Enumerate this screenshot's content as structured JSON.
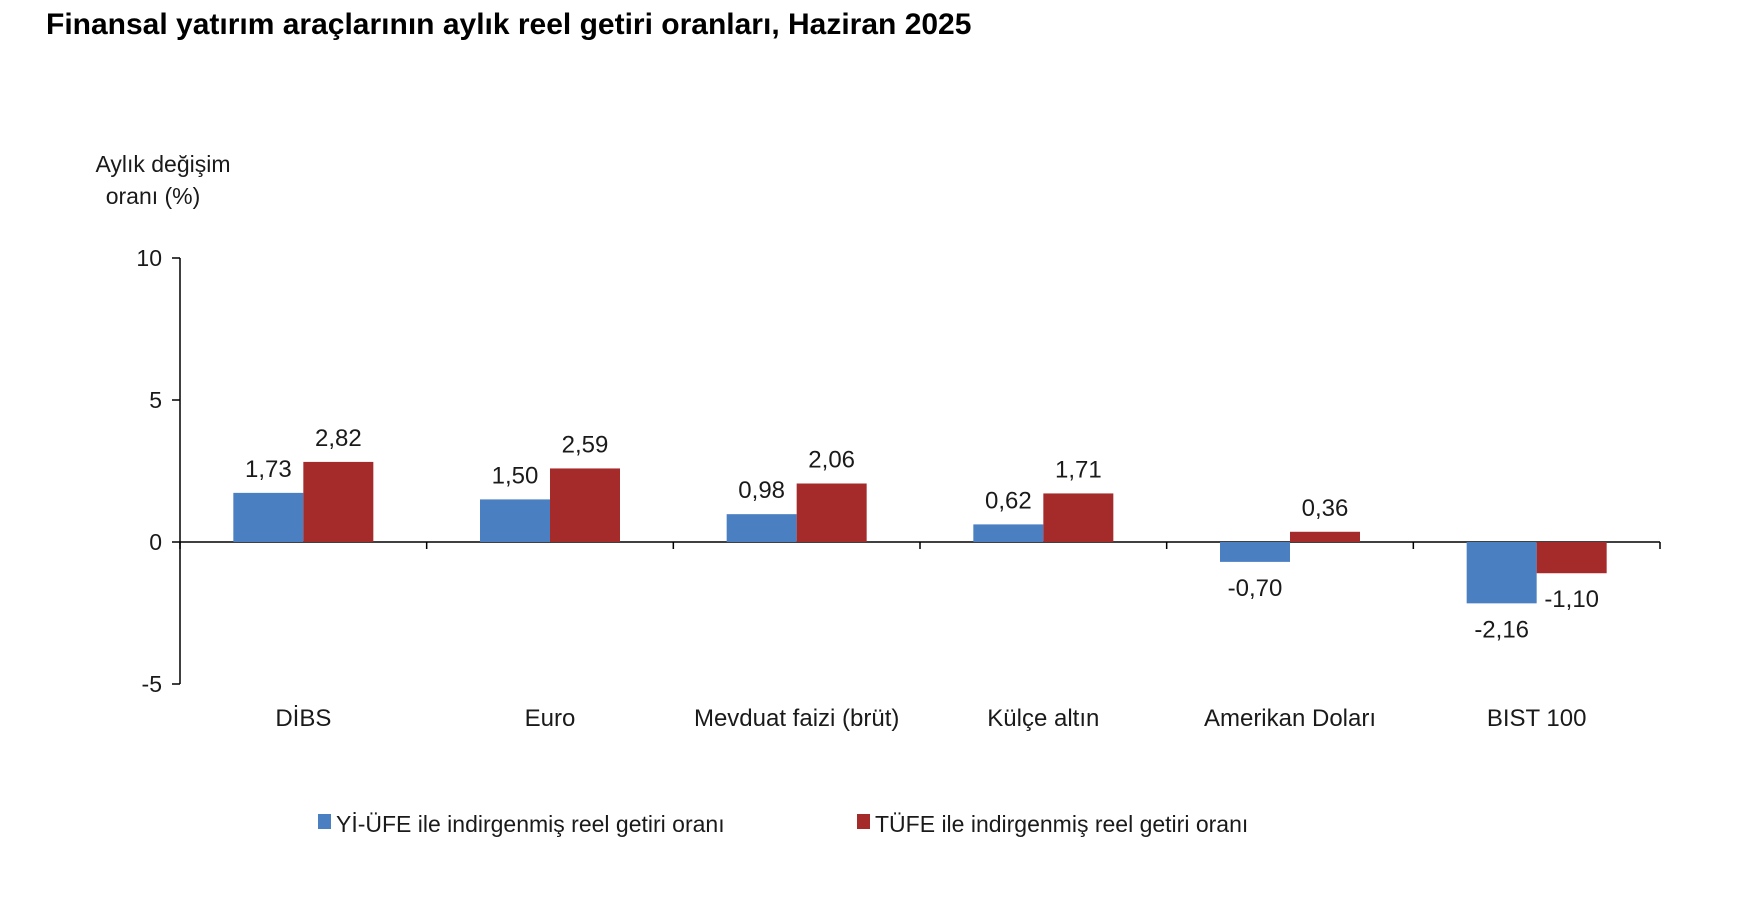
{
  "title": "Finansal yatırım araçlarının aylık reel getiri oranları, Haziran 2025",
  "chart_data": {
    "type": "bar",
    "title": "Finansal yatırım araçlarının aylık reel getiri oranları, Haziran 2025",
    "ylabel_lines": [
      "Aylık değişim",
      "oranı (%)"
    ],
    "xlabel": "",
    "ylim": [
      -5,
      10
    ],
    "yticks": [
      10,
      5,
      0,
      -5
    ],
    "ytick_labels": [
      "10",
      "5",
      "0",
      "-5"
    ],
    "grid": false,
    "legend_position": "bottom",
    "categories": [
      "DİBS",
      "Euro",
      "Mevduat faizi (brüt)",
      "Külçe altın",
      "Amerikan Doları",
      "BIST 100"
    ],
    "series": [
      {
        "name": "Yİ-ÜFE ile indirgenmiş reel getiri oranı",
        "color": "#4a7fc1",
        "values": [
          1.73,
          1.5,
          0.98,
          0.62,
          -0.7,
          -2.16
        ],
        "labels": [
          "1,73",
          "1,50",
          "0,98",
          "0,62",
          "-0,70",
          "-2,16"
        ]
      },
      {
        "name": "TÜFE ile indirgenmiş reel getiri oranı",
        "color": "#a52a2a",
        "values": [
          2.82,
          2.59,
          2.06,
          1.71,
          0.36,
          -1.1
        ],
        "labels": [
          "2,82",
          "2,59",
          "2,06",
          "1,71",
          "0,36",
          "-1,10"
        ]
      }
    ]
  }
}
